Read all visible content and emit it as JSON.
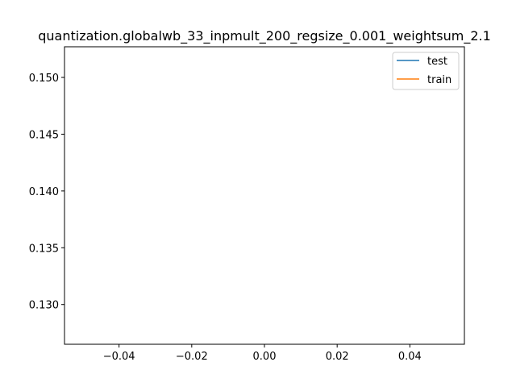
{
  "chart_data": {
    "type": "line",
    "title": "quantization.globalwb_33_inpmult_200_regsize_0.001_weightsum_2.1",
    "xlabel": "",
    "ylabel": "",
    "xlim": [
      -0.055,
      0.055
    ],
    "ylim": [
      0.1265,
      0.1527
    ],
    "x_ticks": [
      -0.04,
      -0.02,
      0.0,
      0.02,
      0.04
    ],
    "x_tick_labels": [
      "−0.04",
      "−0.02",
      "0.00",
      "0.02",
      "0.04"
    ],
    "y_ticks": [
      0.13,
      0.135,
      0.14,
      0.145,
      0.15
    ],
    "y_tick_labels": [
      "0.130",
      "0.135",
      "0.140",
      "0.145",
      "0.150"
    ],
    "grid": false,
    "legend_position": "upper right",
    "series": [
      {
        "name": "test",
        "color": "#1f77b4",
        "x": [],
        "y": []
      },
      {
        "name": "train",
        "color": "#ff7f0e",
        "x": [],
        "y": []
      }
    ]
  }
}
